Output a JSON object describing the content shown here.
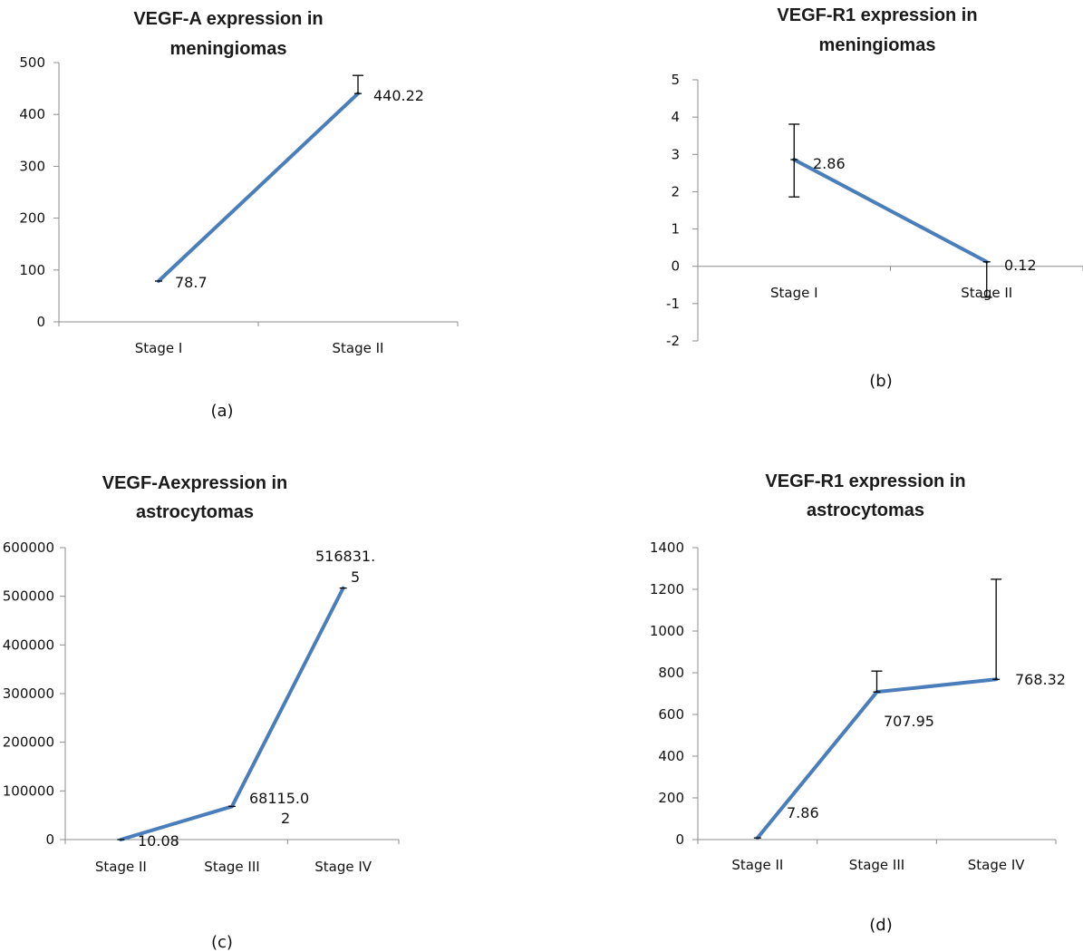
{
  "colors": {
    "series": "#4a7ebb",
    "axis": "#8c8c8c",
    "error": "#000000"
  },
  "chart_data": [
    {
      "type": "line",
      "title_lines": [
        "VEGF-A expression in",
        "meningiomas"
      ],
      "caption": "(a)",
      "categories": [
        "Stage I",
        "Stage II"
      ],
      "values": [
        78.7,
        440.22
      ],
      "value_labels": [
        [
          "78.7"
        ],
        [
          "440.22"
        ]
      ],
      "error_plus": [
        0,
        35
      ],
      "error_minus": [
        0,
        0
      ],
      "ylim": [
        0,
        500
      ],
      "yticks": [
        0,
        100,
        200,
        300,
        400,
        500
      ],
      "ytick_labels": [
        "0",
        "100",
        "200",
        "300",
        "400",
        "500"
      ],
      "grid": false
    },
    {
      "type": "line",
      "title_lines": [
        "VEGF-R1 expression in",
        "meningiomas"
      ],
      "caption": "(b)",
      "categories": [
        "Stage I",
        "Stage II"
      ],
      "values": [
        2.86,
        0.12
      ],
      "value_labels": [
        [
          "2.86"
        ],
        [
          "0.12"
        ]
      ],
      "error_plus": [
        0.95,
        0
      ],
      "error_minus": [
        1.0,
        0.95
      ],
      "ylim": [
        -2,
        5
      ],
      "yticks": [
        -2,
        -1,
        0,
        1,
        2,
        3,
        4,
        5
      ],
      "ytick_labels": [
        "-2",
        "-1",
        "0",
        "1",
        "2",
        "3",
        "4",
        "5"
      ],
      "grid": false
    },
    {
      "type": "line",
      "title_lines": [
        "VEGF-Aexpression in",
        "astrocytomas"
      ],
      "caption": "(c)",
      "categories": [
        "Stage II",
        "Stage III",
        "Stage IV"
      ],
      "values": [
        10.08,
        68115.02,
        516831.5
      ],
      "value_labels": [
        [
          "10.08"
        ],
        [
          "68115.0",
          "2"
        ],
        [
          "516831.",
          "5"
        ]
      ],
      "error_plus": [
        0,
        0,
        0
      ],
      "error_minus": [
        0,
        0,
        0
      ],
      "ylim": [
        0,
        600000
      ],
      "yticks": [
        0,
        100000,
        200000,
        300000,
        400000,
        500000,
        600000
      ],
      "ytick_labels": [
        "0",
        "100000",
        "200000",
        "300000",
        "400000",
        "500000",
        "600000"
      ],
      "grid": false
    },
    {
      "type": "line",
      "title_lines": [
        "VEGF-R1 expression in",
        "astrocytomas"
      ],
      "caption": "(d)",
      "categories": [
        "Stage II",
        "Stage III",
        "Stage IV"
      ],
      "values": [
        7.86,
        707.95,
        768.32
      ],
      "value_labels": [
        [
          "7.86"
        ],
        [
          "707.95"
        ],
        [
          "768.32"
        ]
      ],
      "error_plus": [
        0,
        100,
        480
      ],
      "error_minus": [
        0,
        0,
        0
      ],
      "ylim": [
        0,
        1400
      ],
      "yticks": [
        0,
        200,
        400,
        600,
        800,
        1000,
        1200,
        1400
      ],
      "ytick_labels": [
        "0",
        "200",
        "400",
        "600",
        "800",
        "1000",
        "1200",
        "1400"
      ],
      "grid": false
    }
  ]
}
